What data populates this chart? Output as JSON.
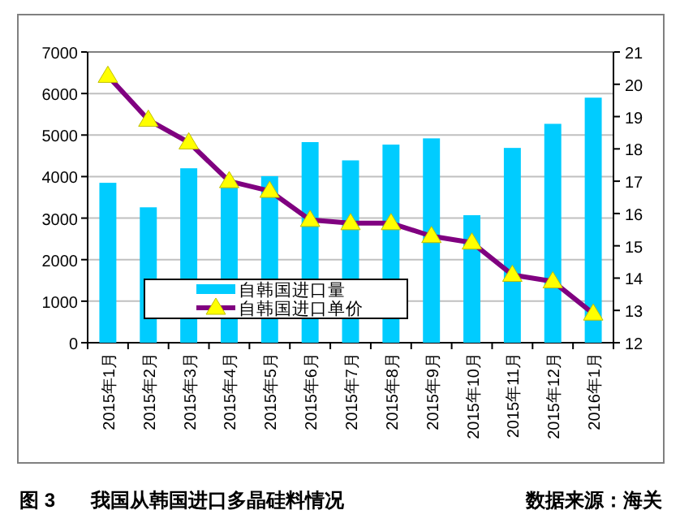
{
  "chart_data": {
    "type": "bar",
    "title": "我国从韩国进口多晶硅料情况",
    "annotations": [
      "图 3",
      "数据来源：海关"
    ],
    "categories": [
      "2015年1月",
      "2015年2月",
      "2015年3月",
      "2015年4月",
      "2015年5月",
      "2015年6月",
      "2015年7月",
      "2015年8月",
      "2015年9月",
      "2015年10月",
      "2015年11月",
      "2015年12月",
      "2016年1月"
    ],
    "series": [
      {
        "name": "自韩国进口量",
        "color": "#00ccff",
        "values": [
          3850,
          3260,
          4200,
          3790,
          4010,
          4830,
          4390,
          4770,
          4920,
          3070,
          4690,
          5270,
          5900
        ]
      },
      {
        "name": "自韩国进口单价",
        "type": "line",
        "axis": "y2",
        "color": "#800080",
        "marker": "triangle",
        "values": [
          20.26,
          18.9,
          18.2,
          17.0,
          16.7,
          15.8,
          15.7,
          15.7,
          15.3,
          15.1,
          14.1,
          13.9,
          12.9
        ]
      }
    ],
    "ylim": [
      0,
      7000
    ],
    "yticks": [
      0,
      1000,
      2000,
      3000,
      4000,
      5000,
      6000,
      7000
    ],
    "y2lim": [
      12,
      21
    ],
    "y2ticks": [
      12,
      13,
      14,
      15,
      16,
      17,
      18,
      19,
      20,
      21
    ],
    "grid": "y",
    "legend": "bottom left"
  }
}
